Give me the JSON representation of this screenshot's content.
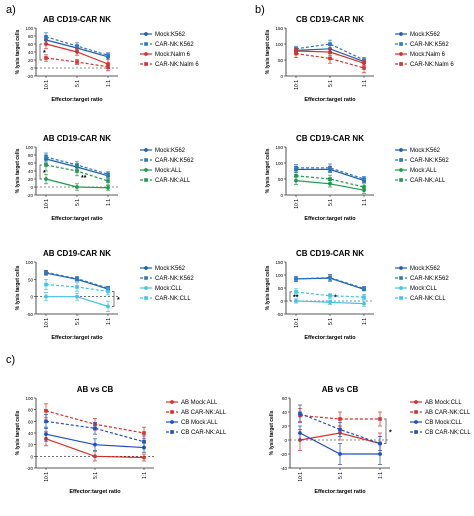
{
  "panel_labels": [
    "a)",
    "b)",
    "c)"
  ],
  "common": {
    "ylabel": "% lysis target cells",
    "xlabel": "Effector:target ratio"
  },
  "colors": {
    "dark_blue": "#1f5fa8",
    "mid_blue": "#2b78c4",
    "red": "#d9302b",
    "green": "#1e9a4a",
    "light_blue": "#40c4e8",
    "sig_line": "#444444"
  },
  "chart_data": [
    {
      "id": "a1",
      "type": "line",
      "title": "AB CD19-CAR NK",
      "xlabel": "Effector:target ratio",
      "ylabel": "% lysis target cells",
      "categories": [
        "10:1",
        "5:1",
        "1:1"
      ],
      "ylim": [
        -20,
        100
      ],
      "yticks": [
        -20,
        0,
        20,
        40,
        60,
        80,
        100
      ],
      "series": [
        {
          "name": "Mock:K562",
          "color": "#1f5fa8",
          "dashed": false,
          "marker": "circle",
          "values": [
            70,
            50,
            28
          ],
          "err": [
            8,
            6,
            6
          ]
        },
        {
          "name": "CAR-NK:K562",
          "color": "#2b78c4",
          "dashed": true,
          "marker": "square",
          "values": [
            78,
            55,
            32
          ],
          "err": [
            10,
            8,
            6
          ]
        },
        {
          "name": "Mock:Nalm 6",
          "color": "#d9302b",
          "dashed": false,
          "marker": "circle",
          "values": [
            60,
            40,
            10
          ],
          "err": [
            12,
            8,
            12
          ]
        },
        {
          "name": "CAR-NK:Nalm 6",
          "color": "#d9302b",
          "dashed": true,
          "marker": "square",
          "values": [
            25,
            15,
            3
          ],
          "err": [
            8,
            6,
            10
          ]
        }
      ],
      "annotations": [
        "*"
      ]
    },
    {
      "id": "b1",
      "type": "line",
      "title": "CB CD19-CAR NK",
      "xlabel": "Effector:target ratio",
      "ylabel": "% lysis target cells",
      "categories": [
        "10:1",
        "5:1",
        "1:1"
      ],
      "ylim": [
        0,
        150
      ],
      "yticks": [
        0,
        50,
        100,
        150
      ],
      "series": [
        {
          "name": "Mock:K562",
          "color": "#1f5fa8",
          "dashed": false,
          "marker": "circle",
          "values": [
            80,
            85,
            45
          ],
          "err": [
            8,
            10,
            6
          ]
        },
        {
          "name": "CAR-NK:K562",
          "color": "#2b78c4",
          "dashed": true,
          "marker": "square",
          "values": [
            85,
            100,
            50
          ],
          "err": [
            8,
            12,
            8
          ]
        },
        {
          "name": "Mock:Nalm 6",
          "color": "#d9302b",
          "dashed": false,
          "marker": "circle",
          "values": [
            78,
            75,
            40
          ],
          "err": [
            8,
            10,
            8
          ]
        },
        {
          "name": "CAR-NK:Nalm 6",
          "color": "#d9302b",
          "dashed": true,
          "marker": "square",
          "values": [
            70,
            55,
            25
          ],
          "err": [
            12,
            15,
            15
          ]
        }
      ],
      "annotations": []
    },
    {
      "id": "a2",
      "type": "line",
      "title": "AB CD19-CAR NK",
      "xlabel": "Effector:target ratio",
      "ylabel": "% lysis target cells",
      "categories": [
        "10:1",
        "5:1",
        "1:1"
      ],
      "ylim": [
        -20,
        100
      ],
      "yticks": [
        -20,
        0,
        20,
        40,
        60,
        80,
        100
      ],
      "series": [
        {
          "name": "Mock:K562",
          "color": "#1f5fa8",
          "dashed": false,
          "marker": "circle",
          "values": [
            70,
            50,
            28
          ],
          "err": [
            10,
            8,
            6
          ]
        },
        {
          "name": "CAR-NK:K562",
          "color": "#2b78c4",
          "dashed": true,
          "marker": "square",
          "values": [
            75,
            55,
            32
          ],
          "err": [
            10,
            8,
            6
          ]
        },
        {
          "name": "Mock:ALL",
          "color": "#1e9a4a",
          "dashed": false,
          "marker": "circle",
          "values": [
            20,
            0,
            -2
          ],
          "err": [
            12,
            8,
            6
          ]
        },
        {
          "name": "CAR-NK:ALL",
          "color": "#1e9a4a",
          "dashed": true,
          "marker": "square",
          "values": [
            55,
            40,
            15
          ],
          "err": [
            15,
            12,
            10
          ]
        }
      ],
      "annotations": [
        "*",
        "**"
      ]
    },
    {
      "id": "b2",
      "type": "line",
      "title": "CB CD19-CAR NK",
      "xlabel": "Effector:target ratio",
      "ylabel": "% lysis target cells",
      "categories": [
        "10:1",
        "5:1",
        "1:1"
      ],
      "ylim": [
        0,
        150
      ],
      "yticks": [
        0,
        50,
        100,
        150
      ],
      "series": [
        {
          "name": "Mock:K562",
          "color": "#1f5fa8",
          "dashed": false,
          "marker": "circle",
          "values": [
            80,
            80,
            45
          ],
          "err": [
            10,
            10,
            6
          ]
        },
        {
          "name": "CAR-NK:K562",
          "color": "#2b78c4",
          "dashed": true,
          "marker": "square",
          "values": [
            85,
            85,
            50
          ],
          "err": [
            10,
            12,
            8
          ]
        },
        {
          "name": "Mock:ALL",
          "color": "#1e9a4a",
          "dashed": false,
          "marker": "circle",
          "values": [
            45,
            35,
            15
          ],
          "err": [
            12,
            10,
            10
          ]
        },
        {
          "name": "CAR-NK:ALL",
          "color": "#1e9a4a",
          "dashed": true,
          "marker": "square",
          "values": [
            60,
            50,
            25
          ],
          "err": [
            15,
            12,
            10
          ]
        }
      ],
      "annotations": []
    },
    {
      "id": "a3",
      "type": "line",
      "title": "AB CD19-CAR NK",
      "xlabel": "Effector:target ratio",
      "ylabel": "% lysis target cells",
      "categories": [
        "10:1",
        "5:1",
        "1:1"
      ],
      "ylim": [
        -50,
        100
      ],
      "yticks": [
        -50,
        0,
        50,
        100
      ],
      "series": [
        {
          "name": "Mock:K562",
          "color": "#1f5fa8",
          "dashed": false,
          "marker": "circle",
          "values": [
            68,
            50,
            22
          ],
          "err": [
            6,
            5,
            5
          ]
        },
        {
          "name": "CAR-NK:K562",
          "color": "#2b78c4",
          "dashed": true,
          "marker": "square",
          "values": [
            70,
            52,
            25
          ],
          "err": [
            6,
            6,
            5
          ]
        },
        {
          "name": "Mock:CLL",
          "color": "#40c4e8",
          "dashed": false,
          "marker": "circle",
          "values": [
            0,
            0,
            -28
          ],
          "err": [
            12,
            10,
            15
          ]
        },
        {
          "name": "CAR-NK:CLL",
          "color": "#40c4e8",
          "dashed": true,
          "marker": "square",
          "values": [
            35,
            28,
            15
          ],
          "err": [
            15,
            12,
            10
          ]
        }
      ],
      "annotations": [
        "*"
      ]
    },
    {
      "id": "b3",
      "type": "line",
      "title": "CB CD19-CAR NK",
      "xlabel": "Effector:target ratio",
      "ylabel": "% lysis target cells",
      "categories": [
        "10:1",
        "5:1",
        "1:1"
      ],
      "ylim": [
        -50,
        150
      ],
      "yticks": [
        -50,
        0,
        50,
        100,
        150
      ],
      "series": [
        {
          "name": "Mock:K562",
          "color": "#1f5fa8",
          "dashed": false,
          "marker": "circle",
          "values": [
            85,
            88,
            45
          ],
          "err": [
            10,
            12,
            6
          ]
        },
        {
          "name": "CAR-NK:K562",
          "color": "#2b78c4",
          "dashed": true,
          "marker": "square",
          "values": [
            85,
            90,
            48
          ],
          "err": [
            10,
            12,
            8
          ]
        },
        {
          "name": "Mock:CLL",
          "color": "#40c4e8",
          "dashed": false,
          "marker": "circle",
          "values": [
            0,
            -5,
            -10
          ],
          "err": [
            8,
            8,
            10
          ]
        },
        {
          "name": "CAR-NK:CLL",
          "color": "#40c4e8",
          "dashed": true,
          "marker": "square",
          "values": [
            35,
            20,
            15
          ],
          "err": [
            12,
            10,
            10
          ]
        }
      ],
      "annotations": [
        "**",
        "*"
      ]
    },
    {
      "id": "c1",
      "type": "line",
      "title": "AB vs CB",
      "xlabel": "Effector:target ratio",
      "ylabel": "% lysis target cells",
      "categories": [
        "10:1",
        "5:1",
        "1:1"
      ],
      "ylim": [
        -20,
        100
      ],
      "yticks": [
        -20,
        0,
        20,
        40,
        60,
        80,
        100
      ],
      "series": [
        {
          "name": "AB Mock:ALL",
          "color": "#d9302b",
          "dashed": false,
          "marker": "circle",
          "values": [
            30,
            0,
            -2
          ],
          "err": [
            12,
            8,
            6
          ]
        },
        {
          "name": "AB CAR-NK:ALL",
          "color": "#d9302b",
          "dashed": true,
          "marker": "square",
          "values": [
            78,
            55,
            40
          ],
          "err": [
            12,
            10,
            10
          ]
        },
        {
          "name": "CB Mock:ALL",
          "color": "#1f4fc4",
          "dashed": false,
          "marker": "circle",
          "values": [
            38,
            20,
            15
          ],
          "err": [
            12,
            10,
            8
          ]
        },
        {
          "name": "CB CAR-NK:ALL",
          "color": "#1f4fc4",
          "dashed": true,
          "marker": "square",
          "values": [
            60,
            48,
            25
          ],
          "err": [
            12,
            10,
            10
          ]
        }
      ],
      "annotations": []
    },
    {
      "id": "c2",
      "type": "line",
      "title": "AB vs CB",
      "xlabel": "Effector:target ratio",
      "ylabel": "% lysis target cells",
      "categories": [
        "10:1",
        "5:1",
        "1:1"
      ],
      "ylim": [
        -40,
        60
      ],
      "yticks": [
        -40,
        -20,
        0,
        20,
        40,
        60
      ],
      "series": [
        {
          "name": "AB Mock:CLL",
          "color": "#d9302b",
          "dashed": false,
          "marker": "circle",
          "values": [
            0,
            10,
            -5
          ],
          "err": [
            15,
            10,
            15
          ]
        },
        {
          "name": "AB CAR-NK:CLL",
          "color": "#d9302b",
          "dashed": true,
          "marker": "square",
          "values": [
            35,
            30,
            30
          ],
          "err": [
            10,
            10,
            10
          ]
        },
        {
          "name": "CB Mock:CLL",
          "color": "#1f4fc4",
          "dashed": false,
          "marker": "circle",
          "values": [
            10,
            -20,
            -20
          ],
          "err": [
            10,
            15,
            15
          ]
        },
        {
          "name": "CB CAR-NK:CLL",
          "color": "#1f4fc4",
          "dashed": true,
          "marker": "square",
          "values": [
            38,
            15,
            -5
          ],
          "err": [
            12,
            10,
            10
          ]
        }
      ],
      "annotations": [
        "*"
      ]
    }
  ]
}
